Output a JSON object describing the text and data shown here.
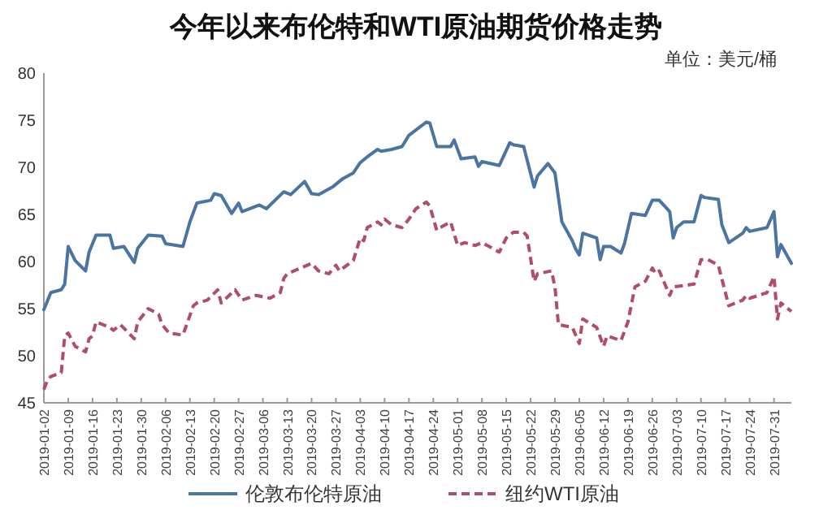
{
  "chart_data": {
    "type": "line",
    "title": "今年以来布伦特和WTI原油期货价格走势",
    "subtitle": "单位：美元/桶",
    "xlim": [
      "2019-01-02",
      "2019-08-05"
    ],
    "xticks": [
      "2019-01-02",
      "2019-01-09",
      "2019-01-16",
      "2019-01-23",
      "2019-01-30",
      "2019-02-06",
      "2019-02-13",
      "2019-02-20",
      "2019-02-27",
      "2019-03-06",
      "2019-03-13",
      "2019-03-20",
      "2019-03-27",
      "2019-04-03",
      "2019-04-10",
      "2019-04-17",
      "2019-04-24",
      "2019-05-01",
      "2019-05-08",
      "2019-05-15",
      "2019-05-22",
      "2019-05-29",
      "2019-06-05",
      "2019-06-12",
      "2019-06-19",
      "2019-06-26",
      "2019-07-03",
      "2019-07-10",
      "2019-07-17",
      "2019-07-24",
      "2019-07-31"
    ],
    "ylim": [
      45,
      80
    ],
    "yticks": [
      45,
      50,
      55,
      60,
      65,
      70,
      75,
      80
    ],
    "grid": false,
    "legend": "bottom",
    "series": [
      {
        "name": "伦敦布伦特原油",
        "color": "#4a74a2",
        "line_style": "solid",
        "x": [
          "2019-01-02",
          "2019-01-04",
          "2019-01-07",
          "2019-01-08",
          "2019-01-09",
          "2019-01-11",
          "2019-01-14",
          "2019-01-15",
          "2019-01-17",
          "2019-01-21",
          "2019-01-22",
          "2019-01-25",
          "2019-01-28",
          "2019-01-29",
          "2019-02-01",
          "2019-02-05",
          "2019-02-06",
          "2019-02-11",
          "2019-02-13",
          "2019-02-15",
          "2019-02-19",
          "2019-02-20",
          "2019-02-22",
          "2019-02-25",
          "2019-02-27",
          "2019-02-28",
          "2019-03-05",
          "2019-03-07",
          "2019-03-12",
          "2019-03-14",
          "2019-03-18",
          "2019-03-20",
          "2019-03-22",
          "2019-03-26",
          "2019-03-29",
          "2019-04-01",
          "2019-04-03",
          "2019-04-05",
          "2019-04-08",
          "2019-04-09",
          "2019-04-12",
          "2019-04-15",
          "2019-04-17",
          "2019-04-22",
          "2019-04-23",
          "2019-04-25",
          "2019-04-29",
          "2019-04-30",
          "2019-05-02",
          "2019-05-06",
          "2019-05-07",
          "2019-05-08",
          "2019-05-13",
          "2019-05-16",
          "2019-05-17",
          "2019-05-20",
          "2019-05-23",
          "2019-05-24",
          "2019-05-27",
          "2019-05-29",
          "2019-05-31",
          "2019-06-03",
          "2019-06-04",
          "2019-06-05",
          "2019-06-06",
          "2019-06-10",
          "2019-06-11",
          "2019-06-12",
          "2019-06-14",
          "2019-06-17",
          "2019-06-18",
          "2019-06-20",
          "2019-06-24",
          "2019-06-26",
          "2019-06-28",
          "2019-07-01",
          "2019-07-02",
          "2019-07-03",
          "2019-07-05",
          "2019-07-08",
          "2019-07-10",
          "2019-07-11",
          "2019-07-15",
          "2019-07-16",
          "2019-07-18",
          "2019-07-22",
          "2019-07-23",
          "2019-07-24",
          "2019-07-29",
          "2019-07-31",
          "2019-08-01",
          "2019-08-02",
          "2019-08-05"
        ],
        "values": [
          54.9,
          56.7,
          57.0,
          57.6,
          61.6,
          60.1,
          59.0,
          61.0,
          62.8,
          62.8,
          61.4,
          61.6,
          59.9,
          61.4,
          62.8,
          62.7,
          61.9,
          61.6,
          64.2,
          66.2,
          66.5,
          67.2,
          67.0,
          65.1,
          66.2,
          65.3,
          66.0,
          65.6,
          67.4,
          67.1,
          68.5,
          67.2,
          67.1,
          67.9,
          68.8,
          69.4,
          70.5,
          71.1,
          71.9,
          71.7,
          71.9,
          72.2,
          73.4,
          74.8,
          74.7,
          72.2,
          72.2,
          72.9,
          70.9,
          71.1,
          70.1,
          70.6,
          70.2,
          72.6,
          72.4,
          72.2,
          67.9,
          69.1,
          70.4,
          69.4,
          64.2,
          62.2,
          61.3,
          60.7,
          63.0,
          62.5,
          60.2,
          61.6,
          61.6,
          60.9,
          61.9,
          65.1,
          64.9,
          66.5,
          66.5,
          65.3,
          62.5,
          63.6,
          64.2,
          64.2,
          67.0,
          66.8,
          66.6,
          63.9,
          62.0,
          63.0,
          63.6,
          63.2,
          63.6,
          65.3,
          60.5,
          61.8,
          59.8
        ]
      },
      {
        "name": "纽约WTI原油",
        "color": "#b04d68",
        "line_style": "dashed",
        "x": [
          "2019-01-02",
          "2019-01-03",
          "2019-01-04",
          "2019-01-07",
          "2019-01-08",
          "2019-01-09",
          "2019-01-11",
          "2019-01-14",
          "2019-01-15",
          "2019-01-16",
          "2019-01-17",
          "2019-01-21",
          "2019-01-22",
          "2019-01-24",
          "2019-01-28",
          "2019-01-29",
          "2019-02-01",
          "2019-02-04",
          "2019-02-05",
          "2019-02-07",
          "2019-02-11",
          "2019-02-14",
          "2019-02-15",
          "2019-02-18",
          "2019-02-21",
          "2019-02-22",
          "2019-02-26",
          "2019-02-28",
          "2019-03-04",
          "2019-03-07",
          "2019-03-08",
          "2019-03-11",
          "2019-03-12",
          "2019-03-13",
          "2019-03-20",
          "2019-03-22",
          "2019-03-25",
          "2019-03-27",
          "2019-03-28",
          "2019-04-01",
          "2019-04-03",
          "2019-04-04",
          "2019-04-05",
          "2019-04-08",
          "2019-04-09",
          "2019-04-10",
          "2019-04-12",
          "2019-04-15",
          "2019-04-17",
          "2019-04-19",
          "2019-04-22",
          "2019-04-23",
          "2019-04-25",
          "2019-04-26",
          "2019-04-29",
          "2019-05-01",
          "2019-05-03",
          "2019-05-06",
          "2019-05-08",
          "2019-05-13",
          "2019-05-15",
          "2019-05-17",
          "2019-05-20",
          "2019-05-21",
          "2019-05-23",
          "2019-05-24",
          "2019-05-28",
          "2019-05-29",
          "2019-05-30",
          "2019-06-03",
          "2019-06-05",
          "2019-06-06",
          "2019-06-10",
          "2019-06-12",
          "2019-06-13",
          "2019-06-17",
          "2019-06-19",
          "2019-06-21",
          "2019-06-24",
          "2019-06-26",
          "2019-06-27",
          "2019-06-28",
          "2019-07-01",
          "2019-07-02",
          "2019-07-08",
          "2019-07-10",
          "2019-07-12",
          "2019-07-15",
          "2019-07-18",
          "2019-07-22",
          "2019-07-23",
          "2019-07-24",
          "2019-07-29",
          "2019-07-31",
          "2019-08-01",
          "2019-08-02",
          "2019-08-05"
        ],
        "values": [
          46.4,
          47.4,
          47.8,
          48.2,
          52.1,
          52.4,
          51.0,
          50.4,
          51.8,
          52.1,
          53.6,
          53.0,
          52.7,
          53.3,
          51.8,
          53.6,
          55.0,
          54.4,
          53.3,
          52.4,
          52.2,
          55.3,
          55.6,
          55.9,
          57.0,
          55.6,
          57.0,
          55.9,
          56.4,
          56.2,
          56.1,
          56.7,
          58.2,
          58.7,
          59.8,
          59.0,
          58.7,
          59.6,
          59.0,
          60.1,
          62.5,
          62.2,
          63.6,
          64.2,
          63.9,
          64.5,
          63.9,
          63.6,
          64.5,
          65.6,
          66.3,
          65.9,
          63.3,
          63.6,
          64.2,
          61.7,
          62.0,
          61.7,
          62.0,
          61.0,
          62.5,
          63.1,
          63.1,
          62.7,
          57.9,
          58.7,
          59.0,
          57.3,
          53.3,
          53.0,
          51.3,
          53.9,
          53.0,
          51.0,
          52.1,
          51.6,
          53.6,
          57.3,
          57.9,
          59.3,
          58.7,
          59.0,
          56.4,
          57.3,
          57.6,
          60.2,
          60.2,
          59.6,
          55.3,
          55.9,
          56.4,
          56.1,
          56.7,
          58.4,
          53.9,
          55.6,
          54.7
        ]
      }
    ]
  }
}
